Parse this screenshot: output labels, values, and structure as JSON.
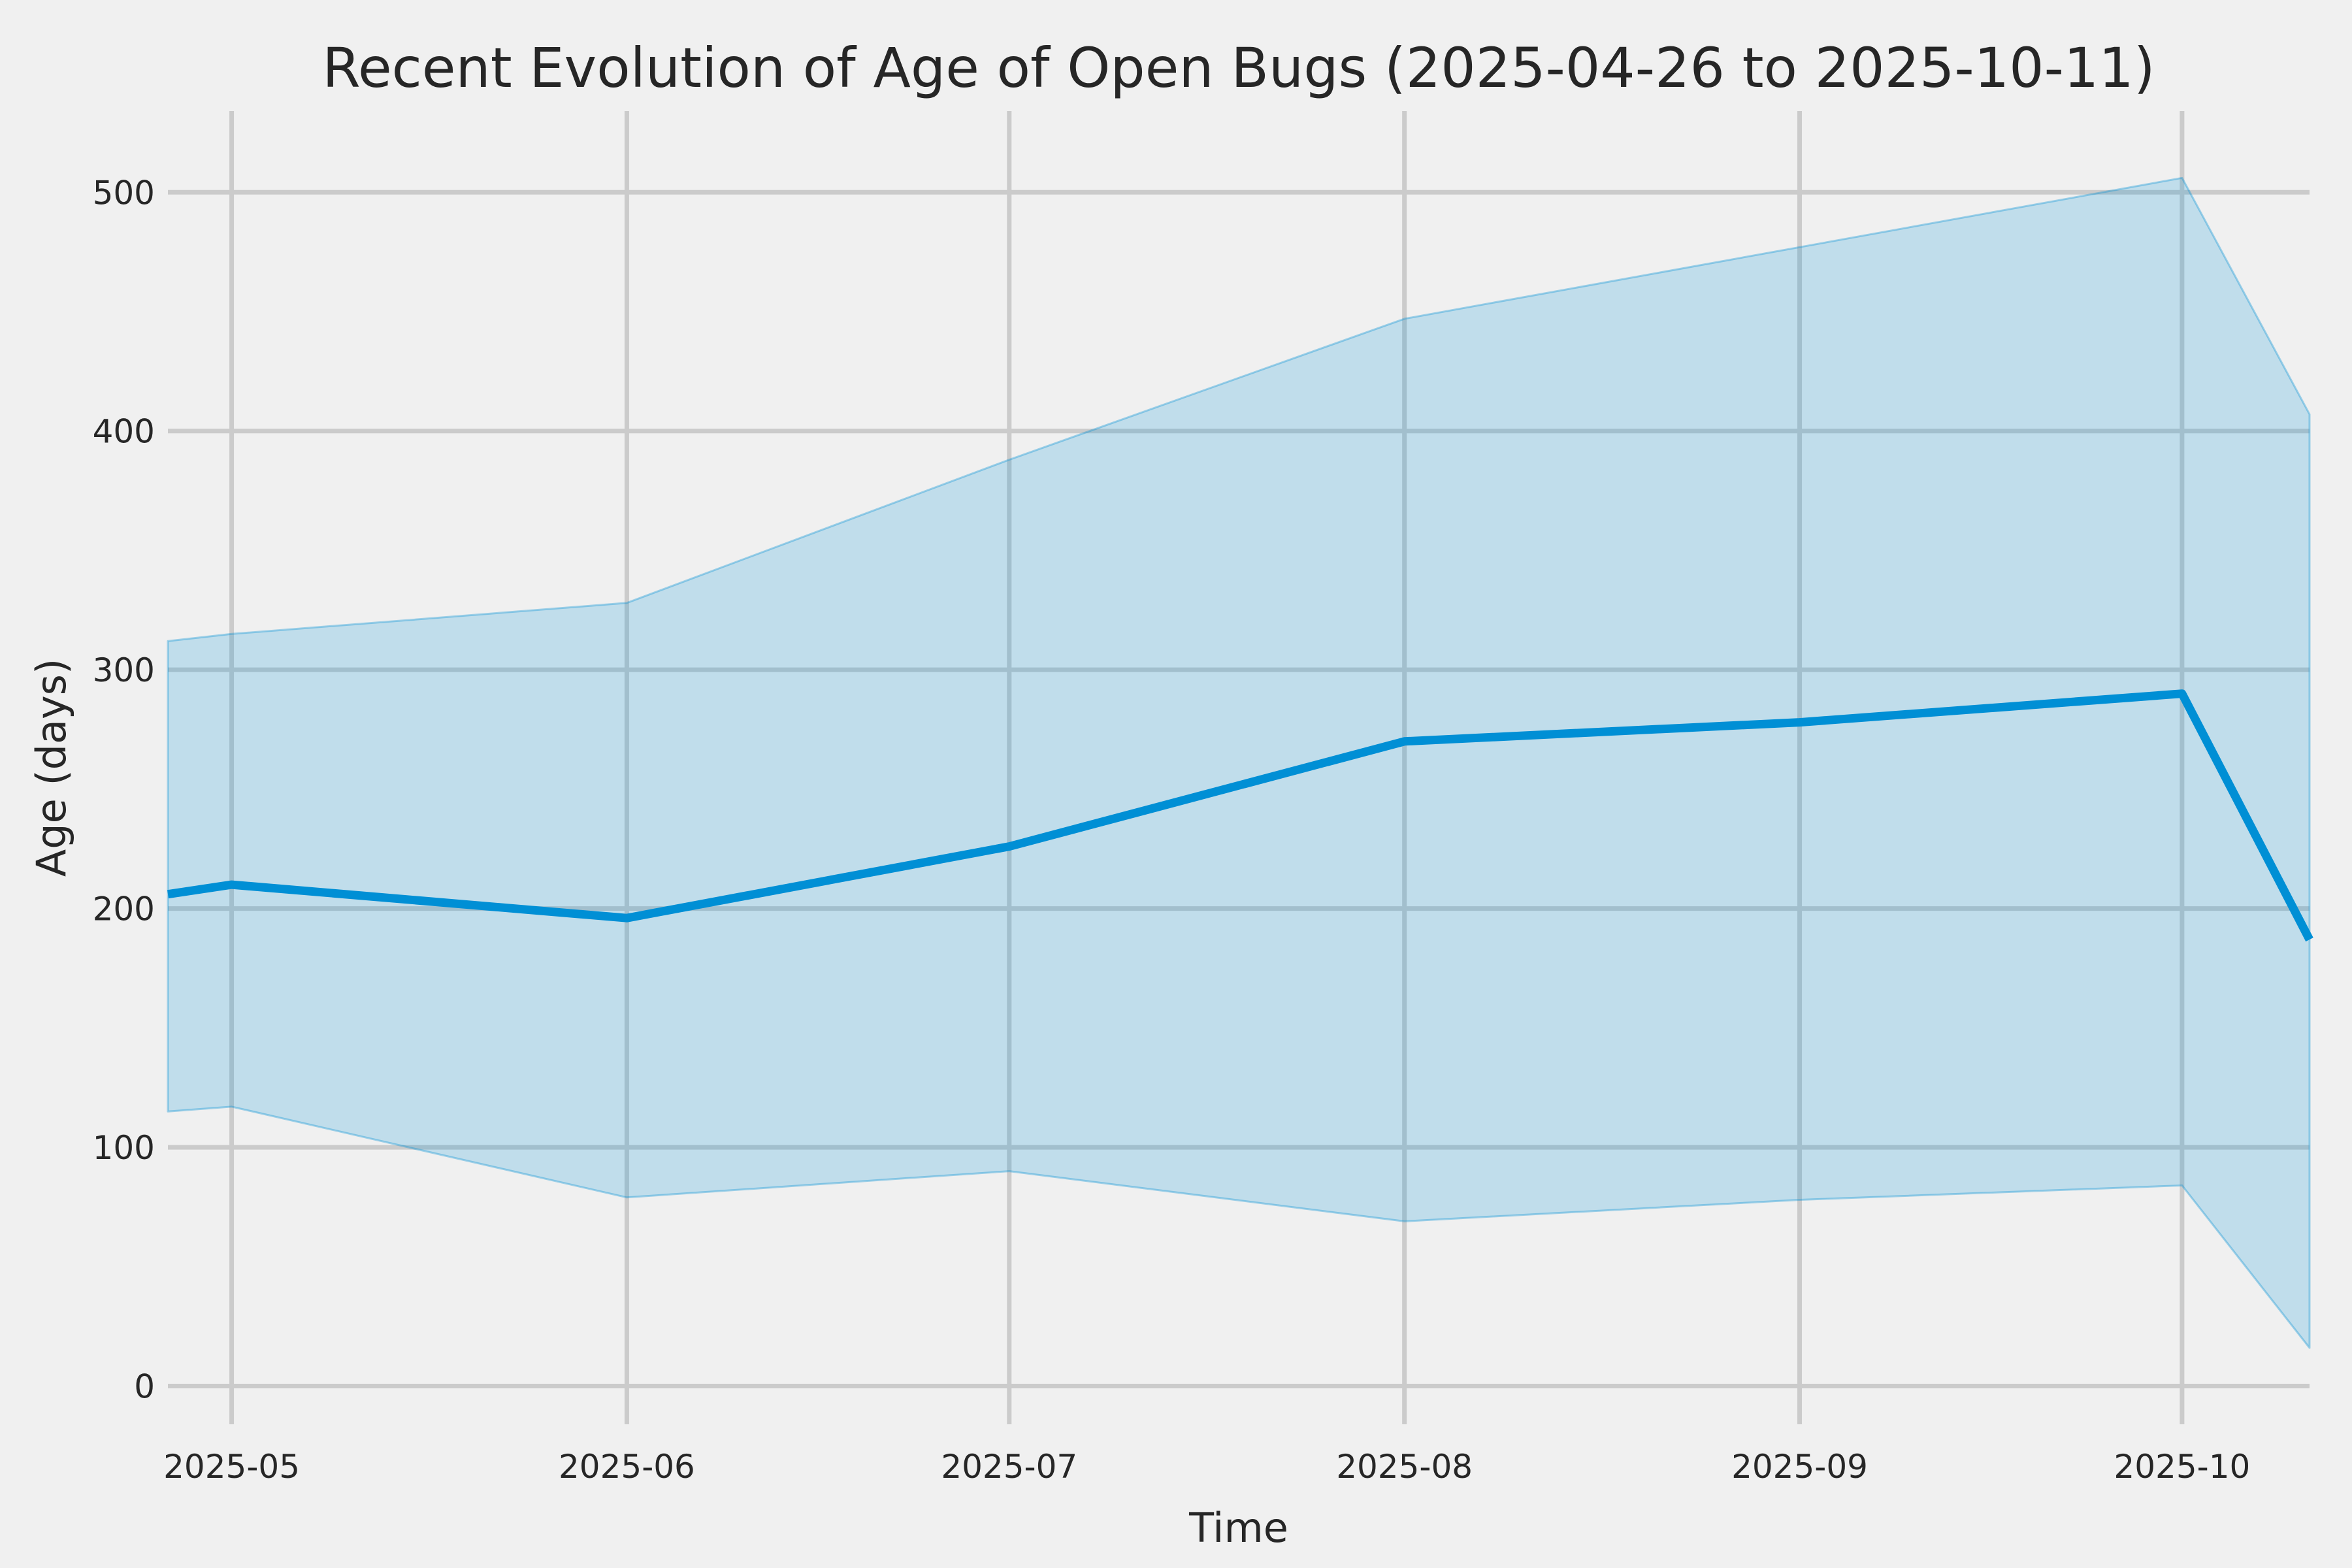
{
  "chart_data": {
    "type": "line",
    "title": "Recent Evolution of Age of Open Bugs (2025-04-26 to 2025-10-11)",
    "xlabel": "Time",
    "ylabel": "Age (days)",
    "x_dates": [
      "2025-04-26",
      "2025-05-01",
      "2025-06-01",
      "2025-07-01",
      "2025-08-01",
      "2025-09-01",
      "2025-10-01",
      "2025-10-11"
    ],
    "x_days": [
      0,
      5,
      36,
      66,
      97,
      128,
      158,
      168
    ],
    "series": [
      {
        "name": "median-age",
        "style": "line",
        "values": [
          206,
          210,
          196,
          226,
          270,
          278,
          290,
          187
        ]
      },
      {
        "name": "band-upper",
        "style": "band-edge",
        "values": [
          312,
          315,
          328,
          388,
          447,
          477,
          506,
          407
        ]
      },
      {
        "name": "band-lower",
        "style": "band-edge",
        "values": [
          115,
          117,
          79,
          90,
          69,
          78,
          84,
          16
        ]
      }
    ],
    "x_ticks": [
      {
        "label": "2025-05",
        "day": 5
      },
      {
        "label": "2025-06",
        "day": 36
      },
      {
        "label": "2025-07",
        "day": 66
      },
      {
        "label": "2025-08",
        "day": 97
      },
      {
        "label": "2025-09",
        "day": 128
      },
      {
        "label": "2025-10",
        "day": 158
      }
    ],
    "y_ticks": [
      {
        "label": "0",
        "value": 0
      },
      {
        "label": "100",
        "value": 100
      },
      {
        "label": "200",
        "value": 200
      },
      {
        "label": "300",
        "value": 300
      },
      {
        "label": "400",
        "value": 400
      },
      {
        "label": "500",
        "value": 500
      }
    ],
    "xlim_days": [
      0,
      168
    ],
    "ylim": [
      -16,
      534
    ],
    "grid": true,
    "legend": false,
    "colors": {
      "background": "#f0f0f0",
      "gridline": "#cbcbcb",
      "line": "#008fd5",
      "band_fill": "#008fd5",
      "band_fill_opacity": 0.2,
      "text": "#262626"
    }
  }
}
